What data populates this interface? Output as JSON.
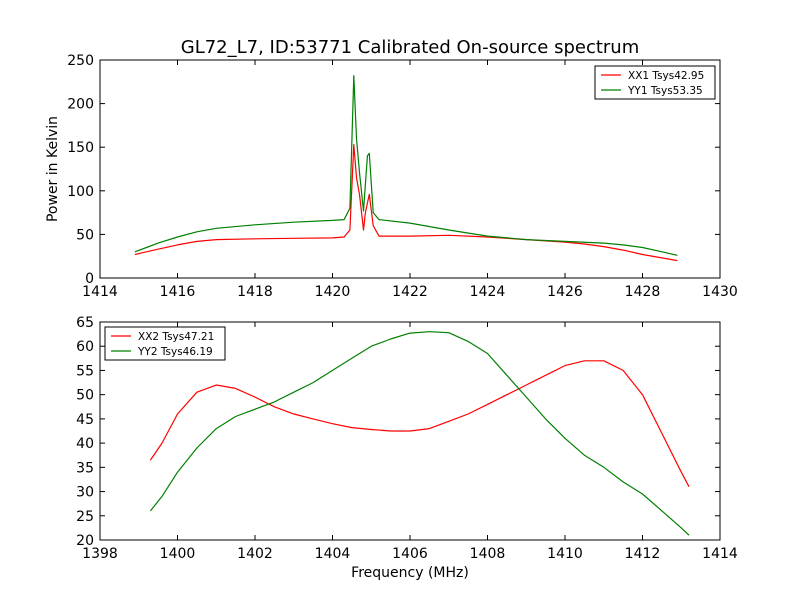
{
  "figure": {
    "title": "GL72_L7, ID:53771 Calibrated On-source spectrum",
    "ylabel": "Power in Kelvin",
    "xlabel": "Frequency (MHz)"
  },
  "chart_data": [
    {
      "type": "line",
      "title": "GL72_L7, ID:53771 Calibrated On-source spectrum",
      "xlabel": "",
      "ylabel": "Power in Kelvin",
      "xlim": [
        1414,
        1430
      ],
      "ylim": [
        0,
        250
      ],
      "xticks": [
        "1414",
        "1416",
        "1418",
        "1420",
        "1422",
        "1424",
        "1426",
        "1428",
        "1430"
      ],
      "yticks": [
        "0",
        "50",
        "100",
        "150",
        "200",
        "250"
      ],
      "grid": false,
      "legend_position": "top-right",
      "series": [
        {
          "name": "XX1 Tsys42.95",
          "color": "#ff0000",
          "x": [
            1414.9,
            1415.2,
            1415.5,
            1416.0,
            1416.5,
            1417.0,
            1418.0,
            1419.0,
            1420.0,
            1420.3,
            1420.45,
            1420.55,
            1420.62,
            1420.7,
            1420.8,
            1420.85,
            1420.95,
            1421.05,
            1421.2,
            1422.0,
            1423.0,
            1424.0,
            1425.0,
            1426.0,
            1426.5,
            1427.0,
            1427.5,
            1428.0,
            1428.5,
            1428.9
          ],
          "y": [
            27,
            30,
            33,
            38,
            42,
            44,
            45,
            45.5,
            46,
            47,
            55,
            153,
            115,
            95,
            55,
            75,
            96,
            60,
            48,
            48,
            49,
            47,
            44,
            41,
            39,
            36,
            32,
            27,
            23,
            20
          ]
        },
        {
          "name": "YY1 Tsys53.35",
          "color": "#008000",
          "x": [
            1414.9,
            1415.2,
            1415.5,
            1416.0,
            1416.5,
            1417.0,
            1418.0,
            1419.0,
            1420.0,
            1420.3,
            1420.45,
            1420.55,
            1420.62,
            1420.7,
            1420.8,
            1420.9,
            1420.95,
            1421.05,
            1421.2,
            1422.0,
            1423.0,
            1424.0,
            1425.0,
            1426.0,
            1427.0,
            1427.5,
            1428.0,
            1428.5,
            1428.9
          ],
          "y": [
            30,
            35,
            40,
            47,
            53,
            57,
            61,
            64,
            66,
            67,
            80,
            232,
            160,
            120,
            77,
            140,
            143,
            75,
            67,
            63,
            55,
            48,
            44,
            42,
            40,
            38,
            35,
            30,
            26
          ]
        }
      ]
    },
    {
      "type": "line",
      "title": "",
      "xlabel": "Frequency (MHz)",
      "ylabel": "",
      "xlim": [
        1398,
        1414
      ],
      "ylim": [
        20,
        65
      ],
      "xticks": [
        "1398",
        "1400",
        "1402",
        "1404",
        "1406",
        "1408",
        "1410",
        "1412",
        "1414"
      ],
      "yticks": [
        "20",
        "25",
        "30",
        "35",
        "40",
        "45",
        "50",
        "55",
        "60",
        "65"
      ],
      "grid": false,
      "legend_position": "top-left",
      "series": [
        {
          "name": "XX2 Tsys47.21",
          "color": "#ff0000",
          "x": [
            1399.3,
            1399.6,
            1400.0,
            1400.5,
            1401.0,
            1401.5,
            1402.0,
            1402.5,
            1403.0,
            1403.5,
            1404.0,
            1404.5,
            1405.0,
            1405.5,
            1406.0,
            1406.5,
            1407.0,
            1407.5,
            1408.0,
            1408.5,
            1409.0,
            1409.5,
            1410.0,
            1410.5,
            1411.0,
            1411.5,
            1412.0,
            1412.5,
            1413.0,
            1413.2
          ],
          "y": [
            36.5,
            40,
            46,
            50.5,
            52,
            51.3,
            49.5,
            47.5,
            46,
            45,
            44,
            43.2,
            42.8,
            42.5,
            42.5,
            43,
            44.5,
            46,
            48,
            50,
            52,
            54,
            56,
            57,
            57,
            55,
            50,
            42,
            34,
            31
          ]
        },
        {
          "name": "YY2 Tsys46.19",
          "color": "#008000",
          "x": [
            1399.3,
            1399.6,
            1400.0,
            1400.5,
            1401.0,
            1401.5,
            1402.0,
            1402.5,
            1403.0,
            1403.5,
            1404.0,
            1404.5,
            1405.0,
            1405.5,
            1406.0,
            1406.5,
            1407.0,
            1407.5,
            1408.0,
            1408.5,
            1409.0,
            1409.5,
            1410.0,
            1410.5,
            1411.0,
            1411.5,
            1412.0,
            1412.5,
            1413.0,
            1413.2
          ],
          "y": [
            26,
            29,
            34,
            39,
            43,
            45.5,
            47,
            48.5,
            50.5,
            52.5,
            55,
            57.5,
            60,
            61.5,
            62.7,
            63,
            62.8,
            61,
            58.5,
            54,
            49.5,
            45,
            41,
            37.5,
            35,
            32,
            29.5,
            26,
            22.5,
            21
          ]
        }
      ]
    }
  ]
}
